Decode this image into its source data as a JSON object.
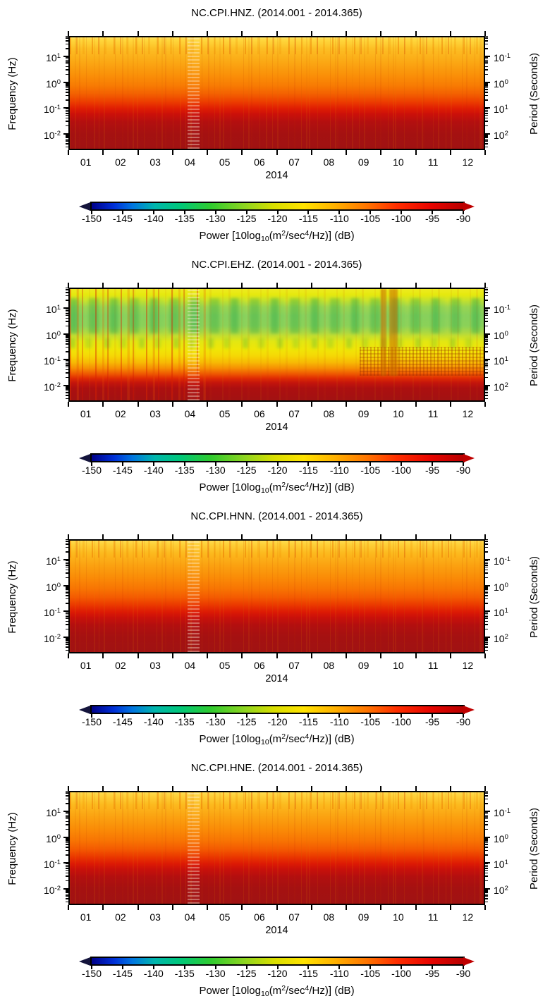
{
  "figure": {
    "background": "#ffffff",
    "text_color": "#000000",
    "frame_color": "#000000",
    "year": "2014"
  },
  "axes": {
    "freq_label": "Frequency (Hz)",
    "period_label": "Period (Seconds)",
    "xlabel": "2014",
    "freq_tick_exponents": [
      "1",
      "0",
      "-1",
      "-2"
    ],
    "period_tick_exponents": [
      "-1",
      "0",
      "1",
      "2"
    ],
    "month_labels": [
      "01",
      "02",
      "03",
      "04",
      "05",
      "06",
      "07",
      "08",
      "09",
      "10",
      "11",
      "12"
    ]
  },
  "colorbar": {
    "min": -150,
    "max": -90,
    "tick_labels": [
      "-150",
      "-145",
      "-140",
      "-135",
      "-130",
      "-125",
      "-120",
      "-115",
      "-110",
      "-105",
      "-100",
      "-95",
      "-90"
    ],
    "label_parts": [
      {
        "t": "Power [10log"
      },
      {
        "t": "10",
        "v": "sub"
      },
      {
        "t": "(m"
      },
      {
        "t": "2",
        "v": "sup"
      },
      {
        "t": "/sec"
      },
      {
        "t": "4",
        "v": "sup"
      },
      {
        "t": "/Hz)] (dB)"
      }
    ],
    "arrow_left_color": "#14143c",
    "arrow_right_color": "#bf0000",
    "colormap_stops": [
      [
        0.0,
        "#000089"
      ],
      [
        0.06,
        "#0030d8"
      ],
      [
        0.11,
        "#0076e0"
      ],
      [
        0.17,
        "#00b6ad"
      ],
      [
        0.24,
        "#00c878"
      ],
      [
        0.32,
        "#2fcb2f"
      ],
      [
        0.41,
        "#8cd520"
      ],
      [
        0.49,
        "#d8de00"
      ],
      [
        0.57,
        "#ffe300"
      ],
      [
        0.65,
        "#ffb400"
      ],
      [
        0.74,
        "#ff7500"
      ],
      [
        0.82,
        "#ff2f00"
      ],
      [
        0.91,
        "#e80500"
      ],
      [
        1.0,
        "#b80000"
      ]
    ]
  },
  "chart_data": [
    {
      "type": "heatmap",
      "channel": "NC.CPI.HNZ.",
      "title": "NC.CPI.HNZ. (2014.001 - 2014.365)",
      "time_range": {
        "start": "2014.001",
        "end": "2014.365"
      },
      "x_axis": {
        "label": "2014",
        "ticks": "months 01-12"
      },
      "y_axis": {
        "label": "Frequency (Hz)",
        "scale": "log",
        "approx_range_hz": [
          0.0025,
          60
        ]
      },
      "y2_axis": {
        "label": "Period (Seconds)",
        "scale": "log",
        "approx_range_s": [
          0.017,
          400
        ]
      },
      "z_axis": {
        "label": "Power [10log10(m2/sec4/Hz)] (dB)",
        "range": [
          -150,
          -90
        ]
      },
      "freq_profile_db": [
        {
          "f_hz": 50,
          "db": -116
        },
        {
          "f_hz": 10,
          "db": -113
        },
        {
          "f_hz": 1,
          "db": -108
        },
        {
          "f_hz": 0.3,
          "db": -105
        },
        {
          "f_hz": 0.1,
          "db": -101
        },
        {
          "f_hz": 0.03,
          "db": -95
        },
        {
          "f_hz": 0.01,
          "db": -93
        },
        {
          "f_hz": 0.003,
          "db": -92
        }
      ],
      "notable_features": [
        "smooth yellow-to-dark-red gradient from high to low frequency",
        "dense orange transient streaks above ~10 Hz, strongest Jan-Mar and Dec",
        "narrow light zigzag band in late April (data gap/anomaly)"
      ],
      "render": {
        "style": "hn",
        "gradient_stops": [
          [
            0.0,
            "#ffe268"
          ],
          [
            0.02,
            "#ffd93e"
          ],
          [
            0.1,
            "#fcbf24"
          ],
          [
            0.22,
            "#fba814"
          ],
          [
            0.33,
            "#fa9209"
          ],
          [
            0.43,
            "#f87c03"
          ],
          [
            0.51,
            "#f35f01"
          ],
          [
            0.58,
            "#ec3c00"
          ],
          [
            0.64,
            "#df1c03"
          ],
          [
            0.69,
            "#cb1009"
          ],
          [
            0.76,
            "#b30f0f"
          ],
          [
            0.86,
            "#a51111"
          ],
          [
            1.0,
            "#a01212"
          ]
        ],
        "features": [
          {
            "cls": "ft-lightband",
            "x": 0.284,
            "w": 0.03,
            "y": 0,
            "h": 1
          }
        ]
      }
    },
    {
      "type": "heatmap",
      "channel": "NC.CPI.EHZ.",
      "title": "NC.CPI.EHZ. (2014.001 - 2014.365)",
      "time_range": {
        "start": "2014.001",
        "end": "2014.365"
      },
      "x_axis": {
        "label": "2014",
        "ticks": "months 01-12"
      },
      "y_axis": {
        "label": "Frequency (Hz)",
        "scale": "log",
        "approx_range_hz": [
          0.0025,
          60
        ]
      },
      "y2_axis": {
        "label": "Period (Seconds)",
        "scale": "log",
        "approx_range_s": [
          0.017,
          400
        ]
      },
      "z_axis": {
        "label": "Power [10log10(m2/sec4/Hz)] (dB)",
        "range": [
          -150,
          -90
        ]
      },
      "freq_profile_db": [
        {
          "f_hz": 50,
          "db": -119
        },
        {
          "f_hz": 20,
          "db": -123
        },
        {
          "f_hz": 8,
          "db": -128
        },
        {
          "f_hz": 3,
          "db": -127
        },
        {
          "f_hz": 1,
          "db": -121
        },
        {
          "f_hz": 0.4,
          "db": -117
        },
        {
          "f_hz": 0.2,
          "db": -111
        },
        {
          "f_hz": 0.1,
          "db": -104
        },
        {
          "f_hz": 0.05,
          "db": -97
        },
        {
          "f_hz": 0.01,
          "db": -92
        }
      ],
      "notable_features": [
        "green low-power band (~-125 to -130 dB) between ~1 and 20 Hz",
        "red transient vertical streaks, strongest Jan-Apr",
        "two dark orange outage-like bands in early October",
        "speckled higher-power texture 0.1-1 Hz from Oct to Dec",
        "narrow light zigzag band in late April (data gap/anomaly)"
      ],
      "render": {
        "style": "eh",
        "gradient_stops": [
          [
            0.0,
            "#eeea20"
          ],
          [
            0.05,
            "#e6e90e"
          ],
          [
            0.1,
            "#cfe428"
          ],
          [
            0.16,
            "#9fd650"
          ],
          [
            0.24,
            "#8bd25e"
          ],
          [
            0.33,
            "#90d35a"
          ],
          [
            0.4,
            "#b8db3c"
          ],
          [
            0.47,
            "#e2e712"
          ],
          [
            0.54,
            "#f0e607"
          ],
          [
            0.6,
            "#f5d805"
          ],
          [
            0.66,
            "#f7b904"
          ],
          [
            0.71,
            "#f69003"
          ],
          [
            0.76,
            "#ef5a01"
          ],
          [
            0.8,
            "#e02c03"
          ],
          [
            0.84,
            "#c5150b"
          ],
          [
            0.89,
            "#ac0f10"
          ],
          [
            1.0,
            "#a21212"
          ]
        ],
        "features": [
          {
            "cls": "ft-lightband",
            "x": 0.284,
            "w": 0.03,
            "y": 0,
            "h": 1
          },
          {
            "cls": "ft-darkband",
            "x": 0.752,
            "w": 0.013,
            "y": 0,
            "h": 0.78
          },
          {
            "cls": "ft-darkband",
            "x": 0.772,
            "w": 0.021,
            "y": 0,
            "h": 0.78
          }
        ]
      }
    },
    {
      "type": "heatmap",
      "channel": "NC.CPI.HNN.",
      "title": "NC.CPI.HNN. (2014.001 - 2014.365)",
      "time_range": {
        "start": "2014.001",
        "end": "2014.365"
      },
      "x_axis": {
        "label": "2014",
        "ticks": "months 01-12"
      },
      "y_axis": {
        "label": "Frequency (Hz)",
        "scale": "log",
        "approx_range_hz": [
          0.0025,
          60
        ]
      },
      "y2_axis": {
        "label": "Period (Seconds)",
        "scale": "log",
        "approx_range_s": [
          0.017,
          400
        ]
      },
      "z_axis": {
        "label": "Power [10log10(m2/sec4/Hz)] (dB)",
        "range": [
          -150,
          -90
        ]
      },
      "freq_profile_db": [
        {
          "f_hz": 50,
          "db": -115
        },
        {
          "f_hz": 10,
          "db": -112
        },
        {
          "f_hz": 1,
          "db": -107
        },
        {
          "f_hz": 0.3,
          "db": -104
        },
        {
          "f_hz": 0.1,
          "db": -100
        },
        {
          "f_hz": 0.03,
          "db": -95
        },
        {
          "f_hz": 0.01,
          "db": -93
        },
        {
          "f_hz": 0.003,
          "db": -92
        }
      ],
      "notable_features": [
        "similar to HNZ with slightly more orange overall",
        "orange transient streaks above ~10 Hz, strongest Jan-Mar and Dec",
        "narrow light zigzag band in late April (data gap/anomaly)"
      ],
      "render": {
        "style": "hn",
        "gradient_stops": [
          [
            0.0,
            "#ffdc52"
          ],
          [
            0.03,
            "#fed139"
          ],
          [
            0.11,
            "#fcba1e"
          ],
          [
            0.22,
            "#fba211"
          ],
          [
            0.33,
            "#fa8c07"
          ],
          [
            0.43,
            "#f87503"
          ],
          [
            0.51,
            "#f45a01"
          ],
          [
            0.58,
            "#ea3700"
          ],
          [
            0.64,
            "#dd1a04"
          ],
          [
            0.69,
            "#c9100a"
          ],
          [
            0.76,
            "#b20f0f"
          ],
          [
            0.86,
            "#a51111"
          ],
          [
            1.0,
            "#a01212"
          ]
        ],
        "features": [
          {
            "cls": "ft-lightband",
            "x": 0.284,
            "w": 0.03,
            "y": 0,
            "h": 1
          }
        ]
      }
    },
    {
      "type": "heatmap",
      "channel": "NC.CPI.HNE.",
      "title": "NC.CPI.HNE. (2014.001 - 2014.365)",
      "time_range": {
        "start": "2014.001",
        "end": "2014.365"
      },
      "x_axis": {
        "label": "2014",
        "ticks": "months 01-12"
      },
      "y_axis": {
        "label": "Frequency (Hz)",
        "scale": "log",
        "approx_range_hz": [
          0.0025,
          60
        ]
      },
      "y2_axis": {
        "label": "Period (Seconds)",
        "scale": "log",
        "approx_range_s": [
          0.017,
          400
        ]
      },
      "z_axis": {
        "label": "Power [10log10(m2/sec4/Hz)] (dB)",
        "range": [
          -150,
          -90
        ]
      },
      "freq_profile_db": [
        {
          "f_hz": 50,
          "db": -115
        },
        {
          "f_hz": 10,
          "db": -112
        },
        {
          "f_hz": 1,
          "db": -107
        },
        {
          "f_hz": 0.3,
          "db": -104
        },
        {
          "f_hz": 0.1,
          "db": -100
        },
        {
          "f_hz": 0.03,
          "db": -95
        },
        {
          "f_hz": 0.01,
          "db": -93
        },
        {
          "f_hz": 0.003,
          "db": -92
        }
      ],
      "notable_features": [
        "similar to HNN",
        "orange transient streaks above ~10 Hz, strongest Jan-Mar and Dec",
        "narrow light zigzag band in late April (data gap/anomaly)"
      ],
      "render": {
        "style": "hn",
        "gradient_stops": [
          [
            0.0,
            "#ffdc52"
          ],
          [
            0.03,
            "#fed139"
          ],
          [
            0.11,
            "#fcba1e"
          ],
          [
            0.22,
            "#fba211"
          ],
          [
            0.33,
            "#fa8c07"
          ],
          [
            0.43,
            "#f87503"
          ],
          [
            0.51,
            "#f45a01"
          ],
          [
            0.58,
            "#ea3700"
          ],
          [
            0.64,
            "#dd1a04"
          ],
          [
            0.69,
            "#c9100a"
          ],
          [
            0.76,
            "#b20f0f"
          ],
          [
            0.86,
            "#a51111"
          ],
          [
            1.0,
            "#a01212"
          ]
        ],
        "features": [
          {
            "cls": "ft-lightband",
            "x": 0.284,
            "w": 0.03,
            "y": 0,
            "h": 1
          }
        ]
      }
    }
  ]
}
